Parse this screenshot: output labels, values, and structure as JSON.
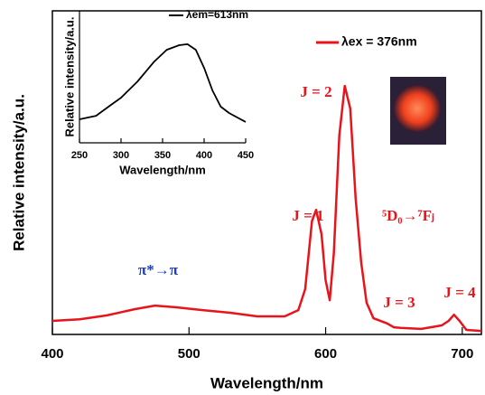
{
  "chart_data": [
    {
      "type": "line",
      "xlabel": "Wavelength/nm",
      "ylabel": "Relative intensity/a.u.",
      "x": [
        400,
        420,
        440,
        460,
        475,
        490,
        510,
        530,
        550,
        570,
        580,
        585,
        590,
        593,
        597,
        600,
        603,
        606,
        610,
        614,
        618,
        622,
        626,
        630,
        635,
        645,
        650,
        655,
        670,
        685,
        690,
        694,
        698,
        703,
        714
      ],
      "series": [
        {
          "name": "λex = 376nm",
          "color": "#e8141b",
          "values": [
            4.2,
            4.7,
            5.9,
            7.8,
            8.9,
            8.4,
            7.5,
            6.7,
            5.6,
            5.6,
            7.5,
            14,
            35,
            38.5,
            31,
            16.8,
            10.6,
            25,
            61.5,
            76.8,
            69.8,
            41.9,
            22.3,
            9.8,
            5,
            3.4,
            2.2,
            2,
            1.7,
            2.8,
            4.2,
            6.1,
            4.2,
            1.4,
            1.1
          ]
        }
      ],
      "xlim": [
        400,
        714
      ],
      "ylim": [
        0,
        100
      ],
      "xticks": [
        400,
        500,
        600,
        700
      ],
      "annotations": [
        {
          "text": "J = 2",
          "color": "#e8141b"
        },
        {
          "text": "J = 1",
          "color": "#e8141b"
        },
        {
          "text": "⁵D₀→⁷Fⱼ",
          "color": "#e8141b"
        },
        {
          "text": "J = 3",
          "color": "#e8141b"
        },
        {
          "text": "J = 4",
          "color": "#e8141b"
        },
        {
          "text": "π*→π",
          "color": "#1f3fbf"
        }
      ]
    },
    {
      "type": "line",
      "xlabel": "Wavelength/nm",
      "ylabel": "Relative intensity/a.u.",
      "x": [
        250,
        270,
        285,
        300,
        320,
        340,
        355,
        370,
        380,
        390,
        400,
        410,
        420,
        430,
        440,
        450
      ],
      "series": [
        {
          "name": "λem=613nm",
          "color": "#000000",
          "values": [
            17.8,
            20.5,
            27.4,
            34.2,
            46.6,
            61.6,
            70.5,
            74,
            74.7,
            70.5,
            56.8,
            39.7,
            27.4,
            22.6,
            19.2,
            15.8
          ]
        }
      ],
      "xlim": [
        250,
        450
      ],
      "ylim": [
        0,
        100
      ],
      "xticks": [
        250,
        300,
        350,
        400,
        450
      ]
    }
  ]
}
